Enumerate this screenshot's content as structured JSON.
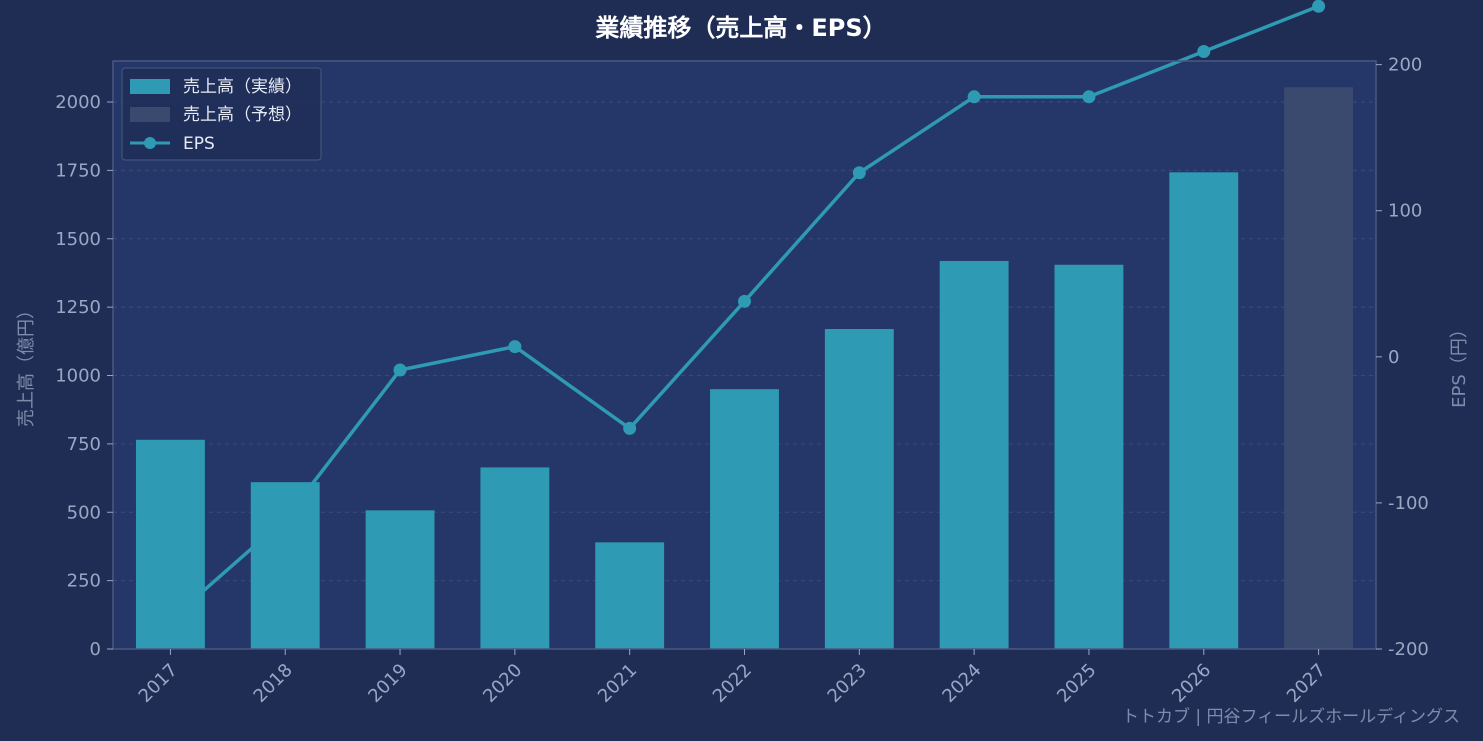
{
  "chart_data": {
    "type": "bar",
    "title": "業績推移（売上高・EPS）",
    "categories": [
      "2017",
      "2018",
      "2019",
      "2020",
      "2021",
      "2022",
      "2023",
      "2024",
      "2025",
      "2026",
      "2027"
    ],
    "series": [
      {
        "name": "売上高（実績）",
        "type": "bar",
        "axis": "left",
        "color": "#2f9ab3",
        "values": [
          765,
          610,
          507,
          664,
          390,
          950,
          1170,
          1419,
          1405,
          1743,
          null
        ]
      },
      {
        "name": "売上高（予想）",
        "type": "bar",
        "axis": "left",
        "color": "#3a4a6e",
        "values": [
          null,
          null,
          null,
          null,
          null,
          null,
          null,
          null,
          null,
          null,
          2054
        ]
      },
      {
        "name": "EPS",
        "type": "line",
        "axis": "right",
        "color": "#2f9ab3",
        "values": [
          -180,
          -111,
          -9,
          7,
          -49,
          38,
          126,
          178,
          178,
          209,
          240
        ]
      }
    ],
    "ylabel": "売上高（億円）",
    "y2label": "EPS（円）",
    "ylim": [
      0,
      2150
    ],
    "y2lim": [
      -200,
      202.5
    ],
    "yticks": [
      "0",
      "250",
      "500",
      "750",
      "1000",
      "1250",
      "1500",
      "1750",
      "2000"
    ],
    "y2ticks": [
      "-200",
      "-100",
      "0",
      "100",
      "200"
    ],
    "grid": true,
    "legend": "top-left"
  },
  "watermark": "トトカブ | 円谷フィールズホールディングス",
  "colors": {
    "background": "#1f2d55",
    "plot_background": "#253668",
    "actual_bar": "#2f9ab3",
    "forecast_bar": "#3a4a6e",
    "eps_line": "#2f9ab3"
  }
}
